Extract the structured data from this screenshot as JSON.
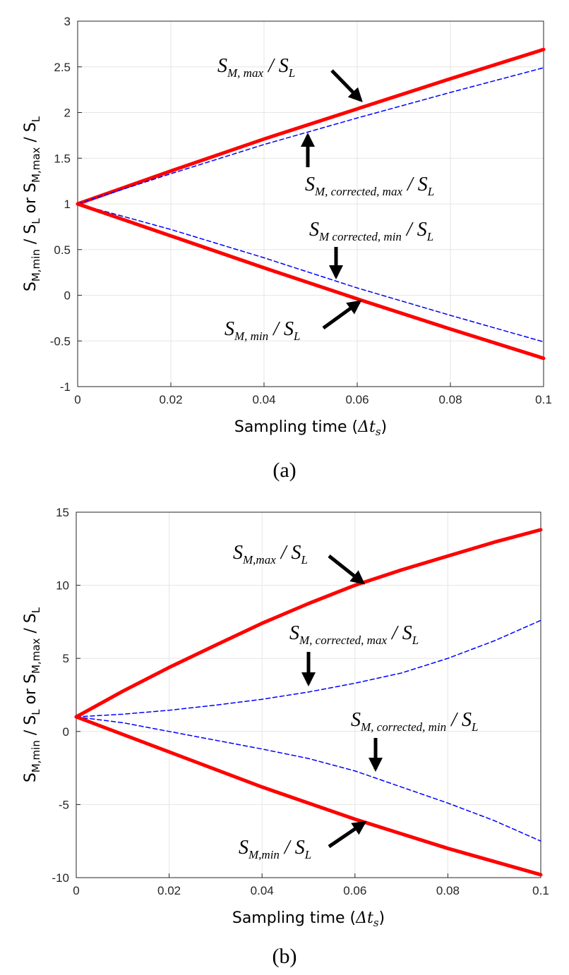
{
  "chart_data": [
    {
      "panel": "(a)",
      "type": "line",
      "xlabel": "Sampling time (Δt_s)",
      "ylabel": "S_M,min / S_L or S_M,max / S_L",
      "xlim": [
        0,
        0.1
      ],
      "ylim": [
        -1,
        3
      ],
      "xticks": [
        "0",
        "0.02",
        "0.04",
        "0.06",
        "0.08",
        "0.1"
      ],
      "yticks": [
        "-1",
        "-0.5",
        "0",
        "0.5",
        "1",
        "1.5",
        "2",
        "2.5",
        "3"
      ],
      "grid": true,
      "x": [
        0,
        0.02,
        0.04,
        0.06,
        0.08,
        0.1
      ],
      "series": [
        {
          "name": "S_M, max / S_L",
          "style": "solid",
          "color": "#ff0000",
          "values": [
            1.0,
            1.36,
            1.71,
            2.04,
            2.37,
            2.69
          ]
        },
        {
          "name": "S_M, corrected, max / S_L",
          "style": "dashed",
          "color": "#0000ff",
          "values": [
            1.0,
            1.33,
            1.65,
            1.94,
            2.22,
            2.49
          ]
        },
        {
          "name": "S_M corrected, min / S_L",
          "style": "dashed",
          "color": "#0000ff",
          "values": [
            1.0,
            0.72,
            0.41,
            0.08,
            -0.22,
            -0.51
          ]
        },
        {
          "name": "S_M, min / S_L",
          "style": "solid",
          "color": "#ff0000",
          "values": [
            1.0,
            0.65,
            0.3,
            -0.04,
            -0.37,
            -0.69
          ]
        }
      ]
    },
    {
      "panel": "(b)",
      "type": "line",
      "xlabel": "Sampling time (Δt_s)",
      "ylabel": "S_M,min / S_L or S_M,max / S_L",
      "xlim": [
        0,
        0.1
      ],
      "ylim": [
        -10,
        15
      ],
      "xticks": [
        "0",
        "0.02",
        "0.04",
        "0.06",
        "0.08",
        "0.1"
      ],
      "yticks": [
        "-10",
        "-5",
        "0",
        "5",
        "10",
        "15"
      ],
      "grid": true,
      "x": [
        0,
        0.01,
        0.02,
        0.03,
        0.04,
        0.05,
        0.06,
        0.07,
        0.08,
        0.09,
        0.1
      ],
      "series": [
        {
          "name": "S_M,max / S_L",
          "style": "solid",
          "color": "#ff0000",
          "values": [
            1.0,
            2.75,
            4.38,
            5.9,
            7.4,
            8.75,
            10.0,
            11.05,
            12.0,
            12.95,
            13.8
          ]
        },
        {
          "name": "S_M, corrected, max / S_L",
          "style": "dashed",
          "color": "#0000ff",
          "values": [
            1.0,
            1.18,
            1.45,
            1.8,
            2.2,
            2.7,
            3.3,
            4.0,
            5.0,
            6.2,
            7.6
          ]
        },
        {
          "name": "S_M, corrected, min / S_L",
          "style": "dashed",
          "color": "#0000ff",
          "values": [
            1.0,
            0.6,
            0.0,
            -0.6,
            -1.2,
            -1.85,
            -2.7,
            -3.8,
            -4.9,
            -6.1,
            -7.5
          ]
        },
        {
          "name": "S_M,min / S_L",
          "style": "solid",
          "color": "#ff0000",
          "values": [
            1.0,
            -0.2,
            -1.4,
            -2.6,
            -3.8,
            -4.9,
            -6.0,
            -7.0,
            -8.0,
            -8.9,
            -9.8
          ]
        }
      ]
    }
  ],
  "annotations": {
    "a": {
      "max": {
        "main": "S",
        "sub": "M, max",
        "den_main": "S",
        "den_sub": "L"
      },
      "corr_max": {
        "main": "S",
        "sub": "M, corrected, max",
        "den_main": "S",
        "den_sub": "L"
      },
      "corr_min": {
        "main": "S",
        "sub": "M corrected, min",
        "den_main": "S",
        "den_sub": "L"
      },
      "min": {
        "main": "S",
        "sub": "M, min",
        "den_main": "S",
        "den_sub": "L"
      }
    },
    "b": {
      "max": {
        "main": "S",
        "sub": "M,max",
        "den_main": "S",
        "den_sub": "L"
      },
      "corr_max": {
        "main": "S",
        "sub": "M, corrected, max",
        "den_main": "S",
        "den_sub": "L"
      },
      "corr_min": {
        "main": "S",
        "sub": "M, corrected, min",
        "den_main": "S",
        "den_sub": "L"
      },
      "min": {
        "main": "S",
        "sub": "M,min",
        "den_main": "S",
        "den_sub": "L"
      }
    }
  },
  "axis_text": {
    "xlabel_main": "Sampling time (",
    "xlabel_delta": "Δt",
    "xlabel_sub": "s",
    "xlabel_close": ")",
    "ylabel_s1": "S",
    "ylabel_sub1": "M,min",
    "ylabel_slash1": " / S",
    "ylabel_subL1": "L",
    "ylabel_or": "   or S",
    "ylabel_sub2": "M,max",
    "ylabel_slash2": " / S",
    "ylabel_subL2": "L"
  },
  "panel_labels": [
    "(a)",
    "(b)"
  ]
}
